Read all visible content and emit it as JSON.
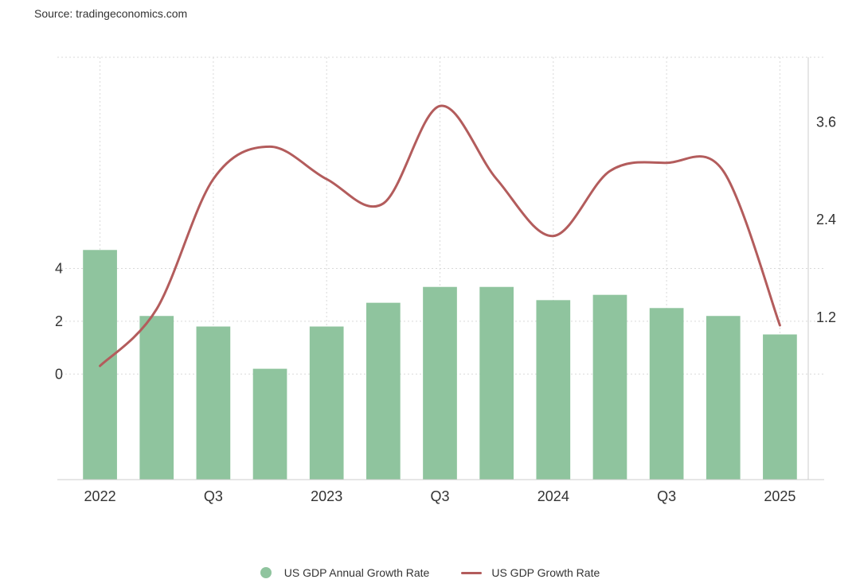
{
  "source": "Source: tradingeconomics.com",
  "colors": {
    "bar": "#8fc49e",
    "line": "#b35c5c",
    "grid": "#d9d9d9",
    "axis": "#cccccc"
  },
  "chart_data": {
    "type": "bar",
    "title": "",
    "xlabel": "",
    "ylabel": "",
    "categories": [
      "2022 Q1",
      "2022 Q2",
      "2022 Q3",
      "2022 Q4",
      "2023 Q1",
      "2023 Q2",
      "2023 Q3",
      "2023 Q4",
      "2024 Q1",
      "2024 Q2",
      "2024 Q3",
      "2024 Q4",
      "2025 Q1"
    ],
    "x_tick_labels": [
      {
        "index": 0,
        "label": "2022"
      },
      {
        "index": 2,
        "label": "Q3"
      },
      {
        "index": 4,
        "label": "2023"
      },
      {
        "index": 6,
        "label": "Q3"
      },
      {
        "index": 8,
        "label": "2024"
      },
      {
        "index": 10,
        "label": "Q3"
      },
      {
        "index": 12,
        "label": "2025"
      }
    ],
    "y_left": {
      "ylim": [
        -4,
        12
      ],
      "ticks": [
        0,
        2,
        4
      ],
      "tick_labels": [
        "0",
        "2",
        "4"
      ]
    },
    "y_right": {
      "ylim": [
        -0.8,
        4.4
      ],
      "ticks": [
        1.2,
        2.4,
        3.6
      ],
      "tick_labels": [
        "1.2",
        "2.4",
        "3.6"
      ]
    },
    "grid": true,
    "legend_position": "bottom-center",
    "series": [
      {
        "name": "US GDP Annual Growth Rate",
        "type": "bar",
        "axis": "left",
        "values": [
          4.7,
          2.2,
          1.8,
          0.2,
          1.8,
          2.7,
          3.3,
          3.3,
          2.8,
          3.0,
          2.5,
          2.2,
          1.5
        ]
      },
      {
        "name": "US GDP Growth Rate",
        "type": "line",
        "axis": "right",
        "values": [
          0.6,
          1.3,
          2.9,
          3.3,
          2.9,
          2.6,
          3.8,
          2.9,
          2.2,
          3.0,
          3.1,
          3.0,
          1.1
        ]
      }
    ]
  }
}
